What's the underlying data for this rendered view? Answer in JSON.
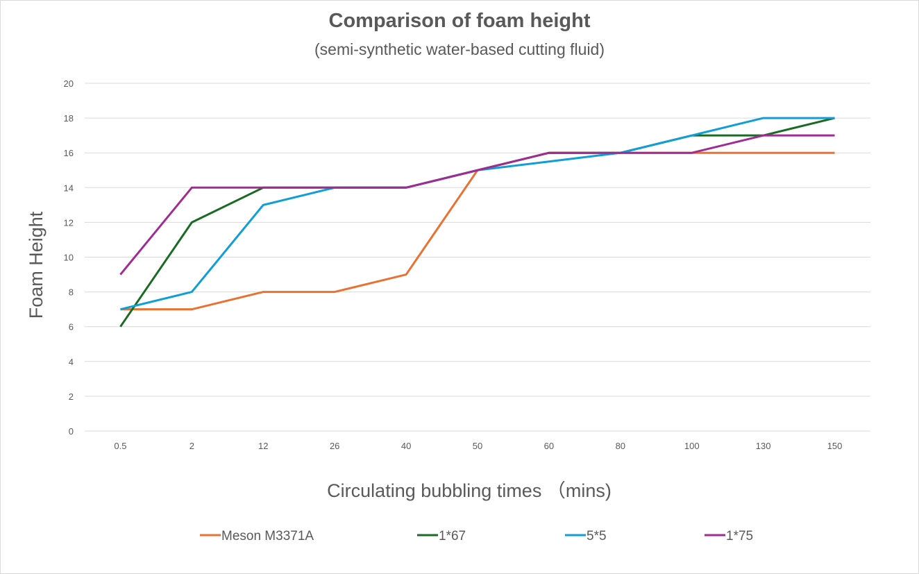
{
  "chart_data": {
    "type": "line",
    "title": "Comparison of foam height",
    "subtitle": "(semi-synthetic water-based cutting fluid)",
    "xlabel": "Circulating bubbling times （mins)",
    "ylabel": "Foam Height",
    "categories": [
      "0.5",
      "2",
      "12",
      "26",
      "40",
      "50",
      "60",
      "80",
      "100",
      "130",
      "150"
    ],
    "ylim": [
      0,
      20
    ],
    "yticks": [
      0,
      2,
      4,
      6,
      8,
      10,
      12,
      14,
      16,
      18,
      20
    ],
    "grid": true,
    "legend_position": "bottom",
    "series": [
      {
        "name": "Meson M3371A",
        "color": "#E97132",
        "values": [
          7,
          7,
          8,
          8,
          9,
          15,
          16,
          16,
          16,
          16,
          16
        ]
      },
      {
        "name": "1*67",
        "color": "#196B24",
        "values": [
          6,
          12,
          14,
          14,
          14,
          15,
          16,
          16,
          17,
          17,
          18
        ]
      },
      {
        "name": "5*5",
        "color": "#0F9ED5",
        "values": [
          7,
          8,
          13,
          14,
          14,
          15,
          15.5,
          16,
          17,
          18,
          18
        ]
      },
      {
        "name": "1*75",
        "color": "#A02B93",
        "values": [
          9,
          14,
          14,
          14,
          14,
          15,
          16,
          16,
          16,
          17,
          17
        ]
      }
    ]
  }
}
